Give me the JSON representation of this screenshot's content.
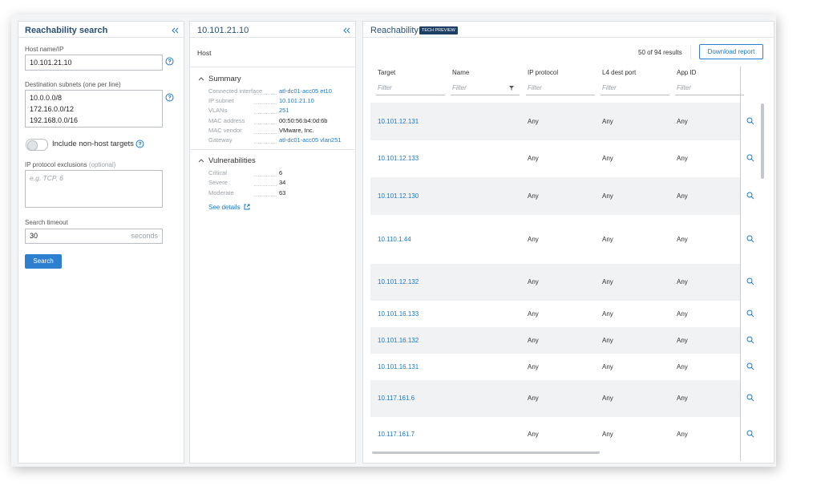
{
  "left_panel": {
    "title": "Reachability search",
    "host_label": "Host name/IP",
    "host_value": "10.101.21.10",
    "subnets_label": "Destination subnets (one per line)",
    "subnets": [
      "10.0.0.0/8",
      "172.16.0.0/12",
      "192.168.0.0/16"
    ],
    "toggle_label": "Include non-host targets",
    "exclusions_label": "IP protocol exclusions",
    "exclusions_optional": "(optional)",
    "exclusions_placeholder": "e.g. TCP, 6",
    "timeout_label": "Search timeout",
    "timeout_value": "30",
    "timeout_unit": "seconds",
    "search_button": "Search"
  },
  "middle_panel": {
    "title": "10.101.21.10",
    "host_label": "Host",
    "summary": {
      "title": "Summary",
      "rows": [
        {
          "label": "Connected interface",
          "value": "atl-dc01-acc05 et10",
          "link": true
        },
        {
          "label": "IP subnet",
          "value": "10.101.21.10",
          "link": true
        },
        {
          "label": "VLANs",
          "value": "251",
          "link": true
        },
        {
          "label": "MAC address",
          "value": "00:50:56:b4:0d:6b",
          "link": false
        },
        {
          "label": "MAC vendor",
          "value": "VMware, Inc.",
          "link": false
        },
        {
          "label": "Gateway",
          "value": "atl-dc01-acc05 vlan251",
          "link": true
        }
      ]
    },
    "vulnerabilities": {
      "title": "Vulnerabilities",
      "rows": [
        {
          "label": "Critical",
          "value": "6"
        },
        {
          "label": "Severe",
          "value": "34"
        },
        {
          "label": "Moderate",
          "value": "63"
        }
      ]
    },
    "see_details": "See details"
  },
  "right_panel": {
    "title": "Reachability",
    "badge": "TECH PREVIEW",
    "results": "50 of 94 results",
    "download": "Download report",
    "columns": [
      "Target",
      "Name",
      "IP protocol",
      "L4 dest port",
      "App ID"
    ],
    "filter_placeholder": "Filter",
    "rows": [
      {
        "target": "10.101.12.131",
        "ip_protocol": "Any",
        "l4_port": "Any",
        "app_id": "Any"
      },
      {
        "target": "10.101.12.133",
        "ip_protocol": "Any",
        "l4_port": "Any",
        "app_id": "Any"
      },
      {
        "target": "10.101.12.130",
        "ip_protocol": "Any",
        "l4_port": "Any",
        "app_id": "Any"
      },
      {
        "target": "10.110.1.44",
        "ip_protocol": "Any",
        "l4_port": "Any",
        "app_id": "Any"
      },
      {
        "target": "10.101.12.132",
        "ip_protocol": "Any",
        "l4_port": "Any",
        "app_id": "Any"
      },
      {
        "target": "10.101.16.133",
        "ip_protocol": "Any",
        "l4_port": "Any",
        "app_id": "Any"
      },
      {
        "target": "10.101.16.132",
        "ip_protocol": "Any",
        "l4_port": "Any",
        "app_id": "Any"
      },
      {
        "target": "10.101.16.131",
        "ip_protocol": "Any",
        "l4_port": "Any",
        "app_id": "Any"
      },
      {
        "target": "10.117.161.6",
        "ip_protocol": "Any",
        "l4_port": "Any",
        "app_id": "Any"
      },
      {
        "target": "10.117.161.7",
        "ip_protocol": "Any",
        "l4_port": "Any",
        "app_id": "Any"
      }
    ]
  }
}
